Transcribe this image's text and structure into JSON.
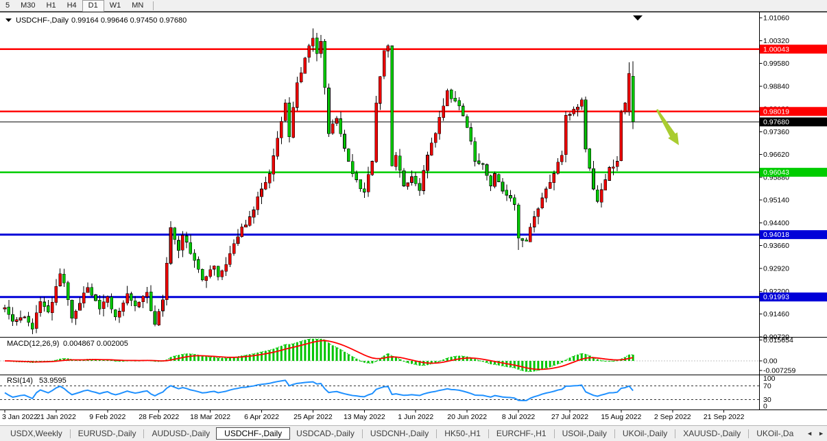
{
  "toolbar": {
    "timeframes": [
      {
        "label": "5",
        "active": false
      },
      {
        "label": "M30",
        "active": false
      },
      {
        "label": "H1",
        "active": false
      },
      {
        "label": "H4",
        "active": false
      },
      {
        "label": "D1",
        "active": true
      },
      {
        "label": "W1",
        "active": false
      },
      {
        "label": "MN",
        "active": false
      }
    ]
  },
  "chart": {
    "symbol_title": "USDCHF-,Daily",
    "ohlc_values": "0.99164 0.99646 0.97450 0.97680",
    "price_axis": [
      "1.01060",
      "1.00320",
      "0.99580",
      "0.98840",
      "0.98100",
      "0.97360",
      "0.96620",
      "0.95880",
      "0.95140",
      "0.94400",
      "0.93660",
      "0.92920",
      "0.92200",
      "0.91460",
      "0.90720"
    ],
    "hlines": [
      {
        "price": 1.00043,
        "label": "1.00043",
        "color": "#FF0000",
        "width": 2.5,
        "type": "resistance"
      },
      {
        "price": 0.98019,
        "label": "0.98019",
        "color": "#FF0000",
        "width": 2.5,
        "type": "resistance"
      },
      {
        "price": 0.9768,
        "label": "0.97680",
        "color": "#000000",
        "width": 1,
        "type": "current-price"
      },
      {
        "price": 0.96043,
        "label": "0.96043",
        "color": "#00CC00",
        "width": 2.5,
        "type": "support"
      },
      {
        "price": 0.94018,
        "label": "0.94018",
        "color": "#0000D8",
        "width": 3,
        "type": "support"
      },
      {
        "price": 0.91993,
        "label": "0.91993",
        "color": "#0000D8",
        "width": 3,
        "type": "support"
      }
    ],
    "dates": [
      "3 Jan 2022",
      "21 Jan 2022",
      "9 Feb 2022",
      "28 Feb 2022",
      "18 Mar 2022",
      "6 Apr 2022",
      "25 Apr 2022",
      "13 May 2022",
      "1 Jun 2022",
      "20 Jun 2022",
      "8 Jul 2022",
      "27 Jul 2022",
      "15 Aug 2022",
      "2 Sep 2022",
      "21 Sep 2022"
    ],
    "colors": {
      "up": "#E80000",
      "down": "#00C400",
      "wick": "#000000",
      "background": "#FFFFFF",
      "border": "#000000"
    },
    "arrow_color": "#A9CC30"
  },
  "macd": {
    "name": "MACD(12,26,9)",
    "values": "0.004867 0.002005",
    "axis": [
      "0.015654",
      "0.00",
      "-0.007259"
    ],
    "histogram_color": "#00C400",
    "signal_color": "#FF0000"
  },
  "rsi": {
    "name": "RSI(14)",
    "value": "53.9595",
    "axis": [
      "100",
      "70",
      "30",
      "0"
    ],
    "levels": [
      70,
      30
    ],
    "line_color": "#1E90FF"
  },
  "tabs": {
    "items": [
      "USDX,Weekly",
      "EURUSD-,Daily",
      "AUDUSD-,Daily",
      "USDCHF-,Daily",
      "USDCAD-,Daily",
      "USDCNH-,Daily",
      "HK50-,H1",
      "EURCHF-,H1",
      "USOil-,Daily",
      "UKOil-,Daily",
      "XAUUSD-,Daily",
      "UKOil-,Da"
    ],
    "active_index": 3,
    "scroll_left": "◄",
    "scroll_right": "►"
  },
  "chart_data": {
    "type": "candlestick",
    "symbol": "USDCHF",
    "timeframe": "Daily",
    "last_candle": {
      "open": 0.99164,
      "high": 0.99646,
      "low": 0.9745,
      "close": 0.9768
    },
    "candle_count": 160,
    "candle_anchors": [
      [
        0,
        0.9165
      ],
      [
        2,
        0.912
      ],
      [
        5,
        0.9135
      ],
      [
        7,
        0.9095
      ],
      [
        9,
        0.9185
      ],
      [
        11,
        0.915
      ],
      [
        14,
        0.9275
      ],
      [
        15,
        0.9245
      ],
      [
        17,
        0.913
      ],
      [
        21,
        0.923
      ],
      [
        24,
        0.916
      ],
      [
        26,
        0.92
      ],
      [
        28,
        0.9135
      ],
      [
        31,
        0.921
      ],
      [
        33,
        0.917
      ],
      [
        36,
        0.9215
      ],
      [
        38,
        0.911
      ],
      [
        40,
        0.919
      ],
      [
        42,
        0.9425
      ],
      [
        44,
        0.935
      ],
      [
        45,
        0.94
      ],
      [
        47,
        0.934
      ],
      [
        50,
        0.9255
      ],
      [
        53,
        0.93
      ],
      [
        54,
        0.9265
      ],
      [
        57,
        0.934
      ],
      [
        59,
        0.9395
      ],
      [
        62,
        0.946
      ],
      [
        65,
        0.955
      ],
      [
        67,
        0.96
      ],
      [
        70,
        0.977
      ],
      [
        71,
        0.983
      ],
      [
        72,
        0.972
      ],
      [
        74,
        0.9895
      ],
      [
        76,
        0.9975
      ],
      [
        78,
        1.004
      ],
      [
        79,
        0.999
      ],
      [
        80,
        1.003
      ],
      [
        81,
        0.988
      ],
      [
        82,
        0.973
      ],
      [
        84,
        0.978
      ],
      [
        85,
        0.973
      ],
      [
        87,
        0.964
      ],
      [
        89,
        0.958
      ],
      [
        91,
        0.954
      ],
      [
        93,
        0.964
      ],
      [
        94,
        0.983
      ],
      [
        96,
        1.0
      ],
      [
        97,
        1.0015
      ],
      [
        98,
        0.9625
      ],
      [
        99,
        0.966
      ],
      [
        101,
        0.956
      ],
      [
        103,
        0.959
      ],
      [
        105,
        0.9545
      ],
      [
        106,
        0.961
      ],
      [
        108,
        0.97
      ],
      [
        111,
        0.982
      ],
      [
        112,
        0.987
      ],
      [
        115,
        0.982
      ],
      [
        117,
        0.975
      ],
      [
        119,
        0.964
      ],
      [
        121,
        0.963
      ],
      [
        123,
        0.956
      ],
      [
        124,
        0.96
      ],
      [
        127,
        0.953
      ],
      [
        129,
        0.95
      ],
      [
        130,
        0.939
      ],
      [
        132,
        0.938
      ],
      [
        134,
        0.946
      ],
      [
        137,
        0.955
      ],
      [
        139,
        0.96
      ],
      [
        141,
        0.966
      ],
      [
        142,
        0.979
      ],
      [
        144,
        0.981
      ],
      [
        146,
        0.984
      ],
      [
        147,
        0.968
      ],
      [
        149,
        0.955
      ],
      [
        150,
        0.951
      ],
      [
        152,
        0.958
      ],
      [
        153,
        0.962
      ],
      [
        155,
        0.964
      ],
      [
        156,
        0.98
      ],
      [
        157,
        0.983
      ],
      [
        158,
        0.9925
      ],
      [
        159,
        0.9768
      ]
    ],
    "forced_candles": {
      "158": {
        "o": 0.98,
        "h": 0.9962,
        "l": 0.9788,
        "c": 0.9925
      },
      "159": {
        "o": 0.99164,
        "h": 0.99646,
        "l": 0.9745,
        "c": 0.9768
      }
    },
    "forced_extremes": {
      "42": {
        "h": 0.9445
      },
      "78": {
        "h": 1.0072
      },
      "130": {
        "l": 0.9352
      }
    },
    "price_axis_range": [
      0.9072,
      1.0106
    ],
    "indicators": [
      "MACD(12,26,9)",
      "RSI(14)"
    ]
  }
}
